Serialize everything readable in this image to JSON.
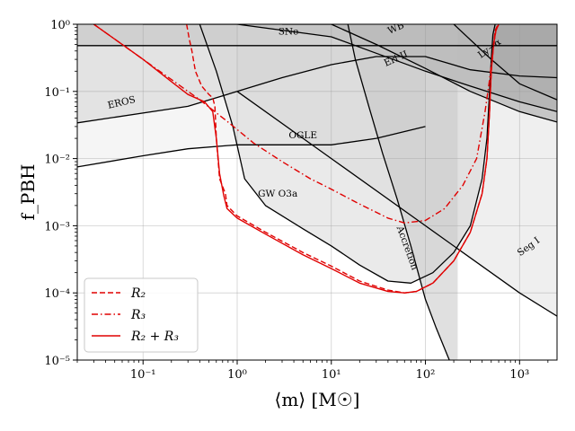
{
  "chart_data": {
    "type": "line",
    "xscale": "log",
    "yscale": "log",
    "xlim": [
      0.02,
      2500
    ],
    "ylim": [
      1e-05,
      1
    ],
    "grid": true,
    "xlabel": "⟨m⟩ [M☉]",
    "ylabel": "f_PBH",
    "x_ticks": [
      {
        "value": 0.1,
        "label": "10⁻¹"
      },
      {
        "value": 1,
        "label": "10⁰"
      },
      {
        "value": 10,
        "label": "10¹"
      },
      {
        "value": 100,
        "label": "10²"
      },
      {
        "value": 1000,
        "label": "10³"
      }
    ],
    "y_ticks": [
      {
        "value": 1e-05,
        "label": "10⁻⁵"
      },
      {
        "value": 0.0001,
        "label": "10⁻⁴"
      },
      {
        "value": 0.001,
        "label": "10⁻³"
      },
      {
        "value": 0.01,
        "label": "10⁻²"
      },
      {
        "value": 0.1,
        "label": "10⁻¹"
      },
      {
        "value": 1,
        "label": "10⁰"
      }
    ],
    "constraints": [
      {
        "name": "SNe",
        "color": "#7a7a7a",
        "x": [
          0.02,
          2500
        ],
        "y": [
          0.48,
          0.48
        ]
      },
      {
        "name": "EROS",
        "color": "#b5b5b5",
        "x": [
          0.02,
          0.3,
          1,
          3,
          10,
          30,
          100,
          300,
          1000,
          2500
        ],
        "y": [
          0.034,
          0.06,
          0.1,
          0.16,
          0.25,
          0.33,
          0.33,
          0.21,
          0.17,
          0.16
        ]
      },
      {
        "name": "OGLE",
        "color": "#e6e6e6",
        "x": [
          0.02,
          0.1,
          0.3,
          1,
          3,
          10,
          30,
          100
        ],
        "y": [
          0.0075,
          0.011,
          0.014,
          0.016,
          0.016,
          0.016,
          0.02,
          0.03
        ]
      },
      {
        "name": "WB",
        "color": "#575757",
        "x": [
          3,
          10,
          30,
          100,
          300,
          1000,
          2500
        ],
        "y": [
          1,
          1,
          0.5,
          0.22,
          0.1,
          0.05,
          0.035
        ]
      },
      {
        "name": "Eri II",
        "color": "#7a7a7a",
        "x": [
          0.1,
          1,
          10,
          30,
          100,
          300,
          1000,
          2500
        ],
        "y": [
          1,
          1,
          0.65,
          0.37,
          0.2,
          0.12,
          0.07,
          0.05
        ]
      },
      {
        "name": "Ly-α",
        "color": "#858585",
        "x": [
          200,
          500,
          1000,
          2500
        ],
        "y": [
          1,
          0.3,
          0.13,
          0.075
        ]
      },
      {
        "name": "Seg I",
        "color": "#d9d9d9",
        "x": [
          1,
          10,
          100,
          1000,
          2500
        ],
        "y": [
          0.1,
          0.01,
          0.001,
          0.0001,
          4.5e-05
        ]
      },
      {
        "name": "Accretion",
        "color": "#b5b5b5",
        "x": [
          15,
          18,
          25,
          35,
          50,
          70,
          100,
          130,
          170,
          220
        ],
        "y": [
          1,
          0.3,
          0.06,
          0.012,
          0.0025,
          0.0005,
          8e-05,
          3e-05,
          1.2e-05,
          5e-06
        ]
      },
      {
        "name": "GW O3a",
        "color": "#cccccc",
        "x": [
          0.4,
          0.6,
          0.9,
          1.2,
          2,
          5,
          10,
          20,
          40,
          70,
          120,
          200,
          300,
          400,
          450,
          480,
          500,
          520,
          550
        ],
        "y": [
          1,
          0.2,
          0.03,
          0.005,
          0.002,
          0.0009,
          0.0005,
          0.00026,
          0.00015,
          0.00014,
          0.0002,
          0.0004,
          0.001,
          0.005,
          0.02,
          0.1,
          0.3,
          0.7,
          1
        ]
      }
    ],
    "series": [
      {
        "name": "R₂",
        "style": "dashed",
        "color": "#e00000",
        "x": [
          0.29,
          0.31,
          0.33,
          0.36,
          0.42,
          0.5,
          0.55,
          0.58,
          0.6,
          0.65,
          0.75,
          0.78,
          1,
          2,
          5,
          10,
          20,
          40,
          60,
          80,
          120,
          200,
          300,
          400,
          450,
          480,
          500,
          530,
          550,
          570,
          600
        ],
        "y": [
          1,
          0.6,
          0.4,
          0.2,
          0.12,
          0.09,
          0.08,
          0.06,
          0.02,
          0.005,
          0.003,
          0.002,
          0.0014,
          0.0008,
          0.0004,
          0.00025,
          0.00015,
          0.00011,
          0.0001,
          0.000105,
          0.00014,
          0.0003,
          0.0008,
          0.003,
          0.01,
          0.05,
          0.2,
          0.5,
          0.8,
          0.9,
          1
        ]
      },
      {
        "name": "R₃",
        "style": "dashdot",
        "color": "#e00000",
        "x": [
          0.03,
          0.05,
          0.1,
          0.2,
          0.4,
          0.8,
          1.5,
          3,
          6,
          10,
          20,
          40,
          60,
          100,
          160,
          250,
          350,
          430,
          480,
          520,
          560,
          600
        ],
        "y": [
          1,
          0.6,
          0.3,
          0.15,
          0.075,
          0.035,
          0.017,
          0.009,
          0.005,
          0.0035,
          0.0021,
          0.0013,
          0.0011,
          0.0012,
          0.0018,
          0.004,
          0.01,
          0.05,
          0.15,
          0.4,
          0.8,
          1
        ]
      },
      {
        "name": "R₂ + R₃",
        "style": "solid",
        "color": "#e00000",
        "x": [
          0.03,
          0.05,
          0.1,
          0.2,
          0.3,
          0.45,
          0.55,
          0.6,
          0.65,
          0.72,
          0.78,
          1,
          2,
          5,
          10,
          20,
          40,
          60,
          80,
          120,
          200,
          300,
          400,
          450,
          480,
          500,
          530,
          560,
          600
        ],
        "y": [
          1,
          0.6,
          0.3,
          0.14,
          0.09,
          0.07,
          0.05,
          0.02,
          0.006,
          0.0028,
          0.0018,
          0.0013,
          0.00075,
          0.00037,
          0.00023,
          0.00014,
          0.000105,
          0.0001,
          0.000105,
          0.00014,
          0.0003,
          0.0008,
          0.003,
          0.01,
          0.05,
          0.2,
          0.5,
          0.8,
          1
        ]
      }
    ],
    "annotations": [
      {
        "text": "SNe",
        "x": 3.5,
        "y": 0.7,
        "rotate": 0
      },
      {
        "text": "WB",
        "x": 50,
        "y": 0.8,
        "rotate": -24
      },
      {
        "text": "Ly−α",
        "x": 500,
        "y": 0.4,
        "rotate": -36
      },
      {
        "text": "Eri II",
        "x": 50,
        "y": 0.28,
        "rotate": -24
      },
      {
        "text": "EROS",
        "x": 0.06,
        "y": 0.062,
        "rotate": -13
      },
      {
        "text": "OGLE",
        "x": 5,
        "y": 0.02,
        "rotate": 0
      },
      {
        "text": "GW O3a",
        "x": 2.7,
        "y": 0.0027,
        "rotate": 0
      },
      {
        "text": "Accretion",
        "x": 60,
        "y": 0.00045,
        "rotate": 70
      },
      {
        "text": "Seg I",
        "x": 1300,
        "y": 0.00045,
        "rotate": -36
      }
    ],
    "legend": {
      "position": "lower-left",
      "entries": [
        "R₂",
        "R₃",
        "R₂ + R₃"
      ]
    }
  }
}
